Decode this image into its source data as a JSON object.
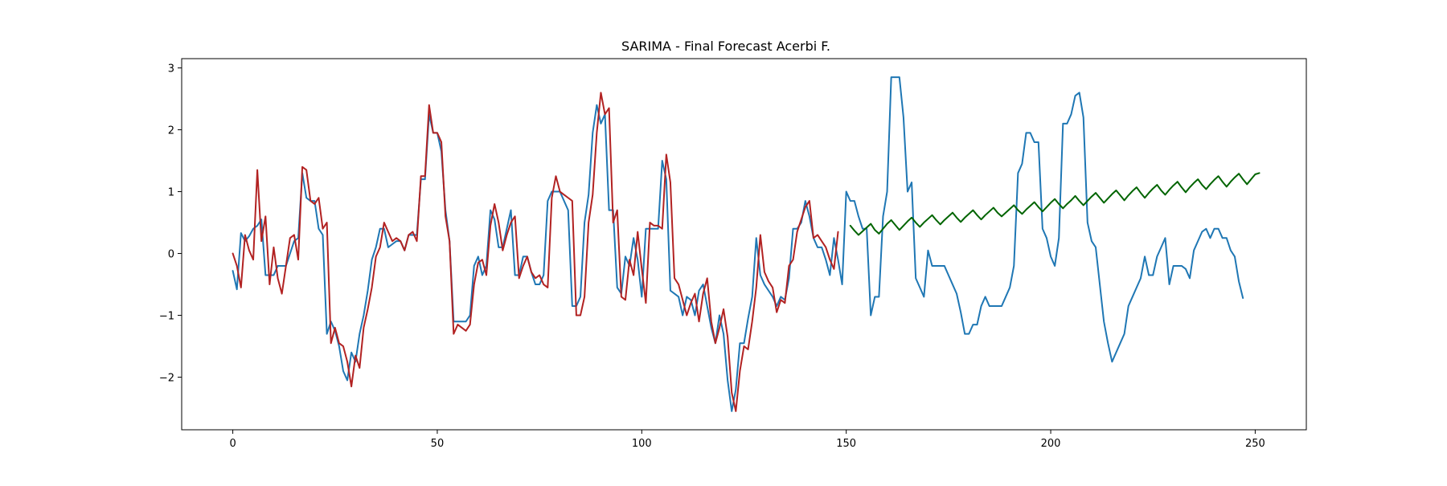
{
  "chart_data": {
    "type": "line",
    "title": "SARIMA - Final Forecast Acerbi F.",
    "xlabel": "",
    "ylabel": "",
    "xlim": [
      -12.5,
      262.5
    ],
    "ylim": [
      -2.85,
      3.15
    ],
    "xticks": [
      0,
      50,
      100,
      150,
      200,
      250
    ],
    "yticks": [
      -2,
      -1,
      0,
      1,
      2,
      3
    ],
    "grid": false,
    "legend": "none",
    "series": [
      {
        "color": "#1f77b4",
        "x_start": 0,
        "values": [
          -0.28,
          -0.58,
          0.33,
          0.2,
          0.28,
          0.4,
          0.45,
          0.55,
          -0.35,
          -0.35,
          -0.35,
          -0.2,
          -0.2,
          -0.2,
          0.0,
          0.2,
          0.25,
          1.3,
          0.9,
          0.85,
          0.85,
          0.4,
          0.3,
          -1.3,
          -1.1,
          -1.25,
          -1.5,
          -1.9,
          -2.05,
          -1.6,
          -1.75,
          -1.3,
          -1.0,
          -0.6,
          -0.1,
          0.1,
          0.4,
          0.4,
          0.1,
          0.15,
          0.2,
          0.2,
          0.05,
          0.3,
          0.3,
          0.3,
          1.2,
          1.2,
          2.25,
          1.95,
          1.95,
          1.65,
          0.7,
          0.2,
          -1.1,
          -1.1,
          -1.1,
          -1.1,
          -1.0,
          -0.2,
          -0.05,
          -0.35,
          -0.2,
          0.7,
          0.55,
          0.1,
          0.1,
          0.4,
          0.7,
          -0.35,
          -0.35,
          -0.05,
          -0.05,
          -0.3,
          -0.5,
          -0.5,
          -0.35,
          0.85,
          1.0,
          1.0,
          1.0,
          0.85,
          0.7,
          -0.85,
          -0.85,
          -0.7,
          0.5,
          0.95,
          1.95,
          2.4,
          2.1,
          2.25,
          0.7,
          0.7,
          -0.55,
          -0.65,
          -0.05,
          -0.2,
          0.25,
          -0.1,
          -0.7,
          0.4,
          0.4,
          0.4,
          0.4,
          1.5,
          1.2,
          -0.6,
          -0.65,
          -0.7,
          -1.0,
          -0.7,
          -0.75,
          -1.0,
          -0.6,
          -0.5,
          -0.85,
          -1.2,
          -1.45,
          -1.0,
          -1.3,
          -2.05,
          -2.55,
          -2.2,
          -1.45,
          -1.45,
          -1.05,
          -0.7,
          0.25,
          -0.35,
          -0.5,
          -0.6,
          -0.7,
          -0.85,
          -0.7,
          -0.75,
          -0.4,
          0.4,
          0.4,
          0.5,
          0.85,
          0.6,
          0.25,
          0.1,
          0.1,
          -0.1,
          -0.35,
          0.25,
          -0.1,
          -0.5,
          1.0,
          0.85,
          0.85,
          0.6,
          0.4,
          0.4,
          -1.0,
          -0.7,
          -0.7,
          0.6,
          1.0,
          2.85,
          2.85,
          2.85,
          2.2,
          1.0,
          1.15,
          -0.4,
          -0.55,
          -0.7,
          0.05,
          -0.2,
          -0.2,
          -0.2,
          -0.2,
          -0.35,
          -0.5,
          -0.65,
          -0.95,
          -1.3,
          -1.3,
          -1.15,
          -1.15,
          -0.85,
          -0.7,
          -0.85,
          -0.85,
          -0.85,
          -0.85,
          -0.7,
          -0.55,
          -0.2,
          1.3,
          1.45,
          1.95,
          1.95,
          1.8,
          1.8,
          0.4,
          0.25,
          -0.05,
          -0.2,
          0.25,
          2.1,
          2.1,
          2.25,
          2.55,
          2.6,
          2.2,
          0.5,
          0.2,
          0.1,
          -0.5,
          -1.1,
          -1.45,
          -1.75,
          -1.6,
          -1.45,
          -1.3,
          -0.85,
          -0.7,
          -0.55,
          -0.4,
          -0.05,
          -0.35,
          -0.35,
          -0.05,
          0.1,
          0.25,
          -0.5,
          -0.2,
          -0.2,
          -0.2,
          -0.25,
          -0.4,
          0.05,
          0.2,
          0.35,
          0.4,
          0.25,
          0.4,
          0.4,
          0.25,
          0.25,
          0.05,
          -0.05,
          -0.45,
          -0.72
        ]
      },
      {
        "color": "#b22222",
        "x_start": 0,
        "values": [
          0.0,
          -0.2,
          -0.55,
          0.3,
          0.05,
          -0.1,
          1.35,
          0.2,
          0.6,
          -0.5,
          0.1,
          -0.4,
          -0.65,
          -0.2,
          0.25,
          0.3,
          -0.1,
          1.4,
          1.35,
          0.85,
          0.8,
          0.9,
          0.4,
          0.5,
          -1.45,
          -1.2,
          -1.45,
          -1.5,
          -1.75,
          -2.15,
          -1.65,
          -1.85,
          -1.2,
          -0.9,
          -0.55,
          -0.05,
          0.1,
          0.5,
          0.35,
          0.2,
          0.25,
          0.2,
          0.05,
          0.3,
          0.35,
          0.2,
          1.25,
          1.25,
          2.4,
          1.95,
          1.95,
          1.8,
          0.6,
          0.2,
          -1.3,
          -1.15,
          -1.2,
          -1.25,
          -1.15,
          -0.5,
          -0.15,
          -0.1,
          -0.35,
          0.45,
          0.8,
          0.5,
          0.05,
          0.3,
          0.5,
          0.6,
          -0.4,
          -0.2,
          -0.05,
          -0.3,
          -0.4,
          -0.35,
          -0.5,
          -0.55,
          0.9,
          1.25,
          1.0,
          0.95,
          0.9,
          0.85,
          -1.0,
          -1.0,
          -0.7,
          0.5,
          0.95,
          1.95,
          2.6,
          2.25,
          2.35,
          0.5,
          0.7,
          -0.7,
          -0.75,
          -0.1,
          -0.35,
          0.35,
          -0.25,
          -0.8,
          0.5,
          0.45,
          0.45,
          0.4,
          1.6,
          1.15,
          -0.4,
          -0.5,
          -0.75,
          -1.0,
          -0.8,
          -0.65,
          -1.1,
          -0.65,
          -0.4,
          -1.1,
          -1.45,
          -1.2,
          -0.9,
          -1.35,
          -2.25,
          -2.55,
          -1.9,
          -1.5,
          -1.55,
          -1.1,
          -0.55,
          0.3,
          -0.3,
          -0.45,
          -0.55,
          -0.95,
          -0.75,
          -0.8,
          -0.2,
          -0.1,
          0.35,
          0.55,
          0.75,
          0.85,
          0.25,
          0.3,
          0.2,
          0.1,
          -0.1,
          -0.25,
          0.35
        ]
      },
      {
        "color": "#006400",
        "x_start": 151,
        "values": [
          0.45,
          0.37,
          0.3,
          0.36,
          0.42,
          0.48,
          0.38,
          0.32,
          0.4,
          0.48,
          0.54,
          0.46,
          0.38,
          0.45,
          0.52,
          0.58,
          0.5,
          0.43,
          0.5,
          0.56,
          0.62,
          0.54,
          0.47,
          0.54,
          0.6,
          0.66,
          0.58,
          0.51,
          0.58,
          0.64,
          0.7,
          0.62,
          0.55,
          0.62,
          0.68,
          0.74,
          0.66,
          0.6,
          0.66,
          0.72,
          0.78,
          0.7,
          0.64,
          0.71,
          0.77,
          0.83,
          0.75,
          0.68,
          0.75,
          0.82,
          0.88,
          0.8,
          0.73,
          0.8,
          0.86,
          0.93,
          0.85,
          0.78,
          0.85,
          0.92,
          0.98,
          0.9,
          0.82,
          0.89,
          0.96,
          1.02,
          0.94,
          0.86,
          0.94,
          1.01,
          1.07,
          0.98,
          0.9,
          0.98,
          1.05,
          1.11,
          1.02,
          0.95,
          1.03,
          1.1,
          1.16,
          1.07,
          0.99,
          1.07,
          1.14,
          1.2,
          1.11,
          1.04,
          1.12,
          1.19,
          1.25,
          1.16,
          1.08,
          1.16,
          1.23,
          1.29,
          1.2,
          1.12,
          1.2,
          1.28,
          1.3
        ]
      }
    ]
  }
}
